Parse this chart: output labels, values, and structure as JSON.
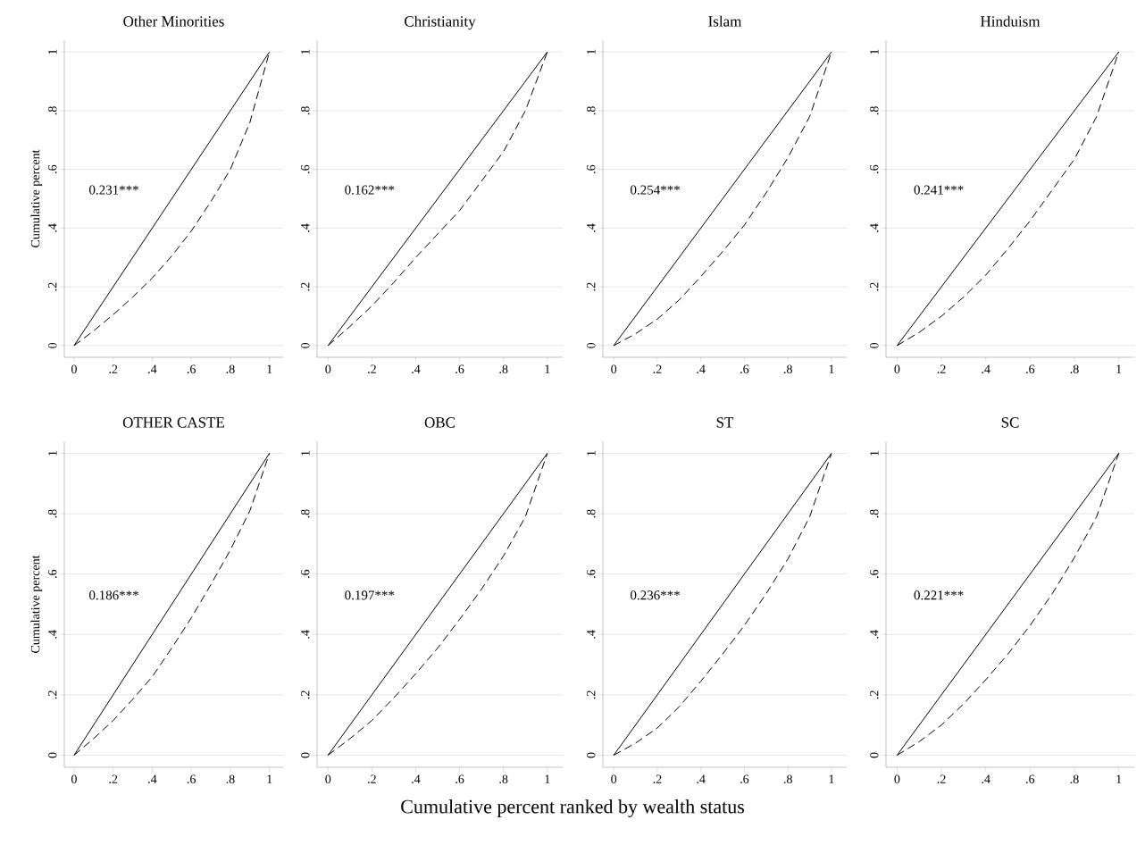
{
  "chart_data": [
    {
      "type": "line",
      "title": "Other Minorities",
      "ylabel": "Cumulative percent",
      "annotations": [
        "0.231***"
      ],
      "xlim": [
        -0.05,
        1.07
      ],
      "ylim": [
        -0.04,
        1.04
      ],
      "xticks": [
        0,
        {
          "value": 0.2,
          "label": ".2"
        },
        {
          "value": 0.4,
          "label": ".4"
        },
        {
          "value": 0.6,
          "label": ".6"
        },
        {
          "value": 0.8,
          "label": ".8"
        },
        1
      ],
      "yticks": [
        0,
        {
          "value": 0.2,
          "label": ".2"
        },
        {
          "value": 0.4,
          "label": ".4"
        },
        {
          "value": 0.6,
          "label": ".6"
        },
        {
          "value": 0.8,
          "label": ".8"
        },
        1
      ],
      "grid": "y",
      "series": [
        {
          "color": "#000000",
          "line_style": "solid",
          "x": [
            0,
            1
          ],
          "values": [
            0,
            1
          ]
        },
        {
          "color": "#000000",
          "line_style": "dashed",
          "x": [
            0,
            0.1,
            0.2,
            0.3,
            0.4,
            0.5,
            0.6,
            0.7,
            0.8,
            0.9,
            1
          ],
          "values": [
            0,
            0.05,
            0.105,
            0.165,
            0.23,
            0.305,
            0.39,
            0.49,
            0.6,
            0.76,
            1
          ]
        }
      ]
    },
    {
      "type": "line",
      "title": "Christianity",
      "annotations": [
        "0.162***"
      ],
      "xlim": [
        -0.05,
        1.07
      ],
      "ylim": [
        -0.04,
        1.04
      ],
      "xticks": [
        0,
        {
          "value": 0.2,
          "label": ".2"
        },
        {
          "value": 0.4,
          "label": ".4"
        },
        {
          "value": 0.6,
          "label": ".6"
        },
        {
          "value": 0.8,
          "label": ".8"
        },
        1
      ],
      "yticks": [
        0,
        {
          "value": 0.2,
          "label": ".2"
        },
        {
          "value": 0.4,
          "label": ".4"
        },
        {
          "value": 0.6,
          "label": ".6"
        },
        {
          "value": 0.8,
          "label": ".8"
        },
        1
      ],
      "grid": "y",
      "series": [
        {
          "color": "#000000",
          "line_style": "solid",
          "x": [
            0,
            1
          ],
          "values": [
            0,
            1
          ]
        },
        {
          "color": "#000000",
          "line_style": "dashed",
          "x": [
            0,
            0.1,
            0.2,
            0.3,
            0.4,
            0.5,
            0.6,
            0.7,
            0.8,
            0.9,
            1
          ],
          "values": [
            0,
            0.065,
            0.135,
            0.215,
            0.3,
            0.38,
            0.46,
            0.56,
            0.66,
            0.8,
            1
          ]
        }
      ]
    },
    {
      "type": "line",
      "title": "Islam",
      "annotations": [
        "0.254***"
      ],
      "xlim": [
        -0.05,
        1.07
      ],
      "ylim": [
        -0.04,
        1.04
      ],
      "xticks": [
        0,
        {
          "value": 0.2,
          "label": ".2"
        },
        {
          "value": 0.4,
          "label": ".4"
        },
        {
          "value": 0.6,
          "label": ".6"
        },
        {
          "value": 0.8,
          "label": ".8"
        },
        1
      ],
      "yticks": [
        0,
        {
          "value": 0.2,
          "label": ".2"
        },
        {
          "value": 0.4,
          "label": ".4"
        },
        {
          "value": 0.6,
          "label": ".6"
        },
        {
          "value": 0.8,
          "label": ".8"
        },
        1
      ],
      "grid": "y",
      "series": [
        {
          "color": "#000000",
          "line_style": "solid",
          "x": [
            0,
            1
          ],
          "values": [
            0,
            1
          ]
        },
        {
          "color": "#000000",
          "line_style": "dashed",
          "x": [
            0,
            0.1,
            0.2,
            0.3,
            0.4,
            0.5,
            0.6,
            0.7,
            0.8,
            0.9,
            1
          ],
          "values": [
            0,
            0.04,
            0.09,
            0.155,
            0.235,
            0.32,
            0.41,
            0.52,
            0.64,
            0.78,
            1
          ]
        }
      ]
    },
    {
      "type": "line",
      "title": "Hinduism",
      "annotations": [
        "0.241***"
      ],
      "xlim": [
        -0.05,
        1.07
      ],
      "ylim": [
        -0.04,
        1.04
      ],
      "xticks": [
        0,
        {
          "value": 0.2,
          "label": ".2"
        },
        {
          "value": 0.4,
          "label": ".4"
        },
        {
          "value": 0.6,
          "label": ".6"
        },
        {
          "value": 0.8,
          "label": ".8"
        },
        1
      ],
      "yticks": [
        0,
        {
          "value": 0.2,
          "label": ".2"
        },
        {
          "value": 0.4,
          "label": ".4"
        },
        {
          "value": 0.6,
          "label": ".6"
        },
        {
          "value": 0.8,
          "label": ".8"
        },
        1
      ],
      "grid": "y",
      "series": [
        {
          "color": "#000000",
          "line_style": "solid",
          "x": [
            0,
            1
          ],
          "values": [
            0,
            1
          ]
        },
        {
          "color": "#000000",
          "line_style": "dashed",
          "x": [
            0,
            0.1,
            0.2,
            0.3,
            0.4,
            0.5,
            0.6,
            0.7,
            0.8,
            0.9,
            1
          ],
          "values": [
            0,
            0.045,
            0.1,
            0.165,
            0.24,
            0.33,
            0.425,
            0.53,
            0.635,
            0.78,
            1
          ]
        }
      ]
    },
    {
      "type": "line",
      "title": "OTHER CASTE",
      "ylabel": "Cumulative percent",
      "annotations": [
        "0.186***"
      ],
      "xlim": [
        -0.05,
        1.07
      ],
      "ylim": [
        -0.04,
        1.04
      ],
      "xticks": [
        0,
        {
          "value": 0.2,
          "label": ".2"
        },
        {
          "value": 0.4,
          "label": ".4"
        },
        {
          "value": 0.6,
          "label": ".6"
        },
        {
          "value": 0.8,
          "label": ".8"
        },
        1
      ],
      "yticks": [
        0,
        {
          "value": 0.2,
          "label": ".2"
        },
        {
          "value": 0.4,
          "label": ".4"
        },
        {
          "value": 0.6,
          "label": ".6"
        },
        {
          "value": 0.8,
          "label": ".8"
        },
        1
      ],
      "grid": "y",
      "series": [
        {
          "color": "#000000",
          "line_style": "solid",
          "x": [
            0,
            1
          ],
          "values": [
            0,
            1
          ]
        },
        {
          "color": "#000000",
          "line_style": "dashed",
          "x": [
            0,
            0.1,
            0.2,
            0.3,
            0.4,
            0.5,
            0.6,
            0.7,
            0.8,
            0.9,
            1
          ],
          "values": [
            0,
            0.055,
            0.115,
            0.185,
            0.26,
            0.355,
            0.455,
            0.565,
            0.68,
            0.81,
            1
          ]
        }
      ]
    },
    {
      "type": "line",
      "title": "OBC",
      "annotations": [
        "0.197***"
      ],
      "xlim": [
        -0.05,
        1.07
      ],
      "ylim": [
        -0.04,
        1.04
      ],
      "xticks": [
        0,
        {
          "value": 0.2,
          "label": ".2"
        },
        {
          "value": 0.4,
          "label": ".4"
        },
        {
          "value": 0.6,
          "label": ".6"
        },
        {
          "value": 0.8,
          "label": ".8"
        },
        1
      ],
      "yticks": [
        0,
        {
          "value": 0.2,
          "label": ".2"
        },
        {
          "value": 0.4,
          "label": ".4"
        },
        {
          "value": 0.6,
          "label": ".6"
        },
        {
          "value": 0.8,
          "label": ".8"
        },
        1
      ],
      "grid": "y",
      "series": [
        {
          "color": "#000000",
          "line_style": "solid",
          "x": [
            0,
            1
          ],
          "values": [
            0,
            1
          ]
        },
        {
          "color": "#000000",
          "line_style": "dashed",
          "x": [
            0,
            0.1,
            0.2,
            0.3,
            0.4,
            0.5,
            0.6,
            0.7,
            0.8,
            0.9,
            1
          ],
          "values": [
            0,
            0.055,
            0.115,
            0.19,
            0.27,
            0.355,
            0.45,
            0.55,
            0.66,
            0.79,
            1
          ]
        }
      ]
    },
    {
      "type": "line",
      "title": "ST",
      "annotations": [
        "0.236***"
      ],
      "xlim": [
        -0.05,
        1.07
      ],
      "ylim": [
        -0.04,
        1.04
      ],
      "xticks": [
        0,
        {
          "value": 0.2,
          "label": ".2"
        },
        {
          "value": 0.4,
          "label": ".4"
        },
        {
          "value": 0.6,
          "label": ".6"
        },
        {
          "value": 0.8,
          "label": ".8"
        },
        1
      ],
      "yticks": [
        0,
        {
          "value": 0.2,
          "label": ".2"
        },
        {
          "value": 0.4,
          "label": ".4"
        },
        {
          "value": 0.6,
          "label": ".6"
        },
        {
          "value": 0.8,
          "label": ".8"
        },
        1
      ],
      "grid": "y",
      "series": [
        {
          "color": "#000000",
          "line_style": "solid",
          "x": [
            0,
            1
          ],
          "values": [
            0,
            1
          ]
        },
        {
          "color": "#000000",
          "line_style": "dashed",
          "x": [
            0,
            0.1,
            0.2,
            0.3,
            0.4,
            0.5,
            0.6,
            0.7,
            0.8,
            0.9,
            1
          ],
          "values": [
            0,
            0.04,
            0.09,
            0.16,
            0.245,
            0.335,
            0.43,
            0.535,
            0.65,
            0.79,
            1
          ]
        }
      ]
    },
    {
      "type": "line",
      "title": "SC",
      "annotations": [
        "0.221***"
      ],
      "xlim": [
        -0.05,
        1.07
      ],
      "ylim": [
        -0.04,
        1.04
      ],
      "xticks": [
        0,
        {
          "value": 0.2,
          "label": ".2"
        },
        {
          "value": 0.4,
          "label": ".4"
        },
        {
          "value": 0.6,
          "label": ".6"
        },
        {
          "value": 0.8,
          "label": ".8"
        },
        1
      ],
      "yticks": [
        0,
        {
          "value": 0.2,
          "label": ".2"
        },
        {
          "value": 0.4,
          "label": ".4"
        },
        {
          "value": 0.6,
          "label": ".6"
        },
        {
          "value": 0.8,
          "label": ".8"
        },
        1
      ],
      "grid": "y",
      "series": [
        {
          "color": "#000000",
          "line_style": "solid",
          "x": [
            0,
            1
          ],
          "values": [
            0,
            1
          ]
        },
        {
          "color": "#000000",
          "line_style": "dashed",
          "x": [
            0,
            0.1,
            0.2,
            0.3,
            0.4,
            0.5,
            0.6,
            0.7,
            0.8,
            0.9,
            1
          ],
          "values": [
            0,
            0.045,
            0.1,
            0.17,
            0.25,
            0.335,
            0.43,
            0.535,
            0.655,
            0.79,
            1
          ]
        }
      ]
    },
    {
      "type": "other",
      "title": "Cumulative percent ranked by wealth status"
    }
  ]
}
